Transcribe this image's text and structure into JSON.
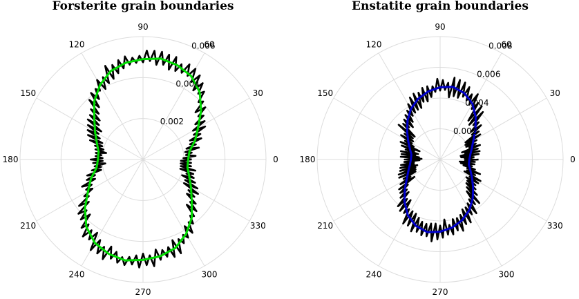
{
  "chart_data": [
    {
      "type": "polar-line",
      "title": "Forsterite grain boundaries",
      "theta_ticks_deg": [
        0,
        30,
        60,
        90,
        120,
        150,
        180,
        210,
        240,
        270,
        300,
        330
      ],
      "theta_labels": [
        "0",
        "30",
        "60",
        "90",
        "120",
        "150",
        "180",
        "210",
        "240",
        "270",
        "300",
        "330"
      ],
      "r_ticks": [
        0.002,
        0.004,
        0.006
      ],
      "r_tick_labels": [
        "0.002",
        "0.004",
        "0.006"
      ],
      "rlim": [
        0,
        0.006
      ],
      "grid": true,
      "series": [
        {
          "color": "#000000",
          "angles_deg": [
            0,
            10,
            20,
            30,
            40,
            50,
            60,
            70,
            80,
            90,
            100,
            110,
            120,
            130,
            140,
            150,
            160,
            170,
            180,
            190,
            200,
            210,
            220,
            230,
            240,
            250,
            260,
            270,
            280,
            290,
            300,
            310,
            320,
            330,
            340,
            350
          ],
          "values": [
            0.0022,
            0.0023,
            0.0027,
            0.0031,
            0.0037,
            0.0043,
            0.0047,
            0.0049,
            0.005,
            0.0049,
            0.0048,
            0.0046,
            0.0042,
            0.0037,
            0.0031,
            0.0027,
            0.0024,
            0.0022,
            0.0022,
            0.0023,
            0.0027,
            0.0031,
            0.0037,
            0.0043,
            0.0047,
            0.0049,
            0.005,
            0.0049,
            0.0048,
            0.0046,
            0.0042,
            0.0037,
            0.0031,
            0.0027,
            0.0024,
            0.0022
          ],
          "noise": 0.00035
        },
        {
          "color": "#00dd00",
          "angles_deg": [
            0,
            10,
            20,
            30,
            40,
            50,
            60,
            70,
            80,
            90,
            100,
            110,
            120,
            130,
            140,
            150,
            160,
            170,
            180,
            190,
            200,
            210,
            220,
            230,
            240,
            250,
            260,
            270,
            280,
            290,
            300,
            310,
            320,
            330,
            340,
            350
          ],
          "values": [
            0.0022,
            0.0023,
            0.0027,
            0.0031,
            0.0037,
            0.0043,
            0.0047,
            0.0049,
            0.005,
            0.0049,
            0.0048,
            0.0046,
            0.0042,
            0.0037,
            0.0031,
            0.0027,
            0.0024,
            0.0022,
            0.0022,
            0.0023,
            0.0027,
            0.0031,
            0.0037,
            0.0043,
            0.0047,
            0.0049,
            0.005,
            0.0049,
            0.0048,
            0.0046,
            0.0042,
            0.0037,
            0.0031,
            0.0027,
            0.0024,
            0.0022
          ]
        }
      ]
    },
    {
      "type": "polar-line",
      "title": "Enstatite grain boundaries",
      "theta_ticks_deg": [
        0,
        30,
        60,
        90,
        120,
        150,
        180,
        210,
        240,
        270,
        300,
        330
      ],
      "theta_labels": [
        "0",
        "30",
        "60",
        "90",
        "120",
        "150",
        "180",
        "210",
        "240",
        "270",
        "300",
        "330"
      ],
      "r_ticks": [
        0.002,
        0.004,
        0.006,
        0.008
      ],
      "r_tick_labels": [
        "0.002",
        "0.004",
        "0.006",
        "0.008"
      ],
      "rlim": [
        0,
        0.008
      ],
      "grid": true,
      "series": [
        {
          "color": "#000000",
          "angles_deg": [
            0,
            10,
            20,
            30,
            40,
            50,
            60,
            70,
            80,
            90,
            100,
            110,
            120,
            130,
            140,
            150,
            160,
            170,
            180,
            190,
            200,
            210,
            220,
            230,
            240,
            250,
            260,
            270,
            280,
            290,
            300,
            310,
            320,
            330,
            340,
            350
          ],
          "values": [
            0.0019,
            0.002,
            0.0022,
            0.0025,
            0.003,
            0.0036,
            0.0042,
            0.0046,
            0.0048,
            0.0047,
            0.0045,
            0.0042,
            0.0038,
            0.0033,
            0.0028,
            0.0024,
            0.0021,
            0.0019,
            0.0019,
            0.002,
            0.0022,
            0.0025,
            0.003,
            0.0036,
            0.0042,
            0.0046,
            0.0048,
            0.0047,
            0.0045,
            0.0042,
            0.0038,
            0.0033,
            0.0028,
            0.0024,
            0.0021,
            0.0019
          ],
          "noise": 0.0006
        },
        {
          "color": "#0000cc",
          "angles_deg": [
            0,
            10,
            20,
            30,
            40,
            50,
            60,
            70,
            80,
            90,
            100,
            110,
            120,
            130,
            140,
            150,
            160,
            170,
            180,
            190,
            200,
            210,
            220,
            230,
            240,
            250,
            260,
            270,
            280,
            290,
            300,
            310,
            320,
            330,
            340,
            350
          ],
          "values": [
            0.0019,
            0.002,
            0.0022,
            0.0025,
            0.003,
            0.0036,
            0.0042,
            0.0046,
            0.0048,
            0.0047,
            0.0045,
            0.0042,
            0.0038,
            0.0033,
            0.0028,
            0.0024,
            0.0021,
            0.0019,
            0.0019,
            0.002,
            0.0022,
            0.0025,
            0.003,
            0.0036,
            0.0042,
            0.0046,
            0.0048,
            0.0047,
            0.0045,
            0.0042,
            0.0038,
            0.0033,
            0.0028,
            0.0024,
            0.0021,
            0.0019
          ]
        }
      ]
    }
  ]
}
